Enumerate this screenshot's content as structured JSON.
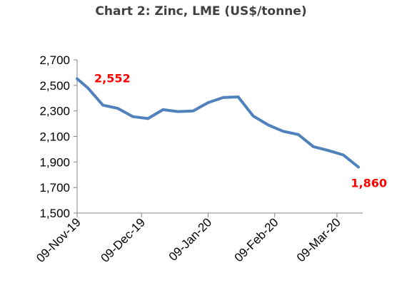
{
  "chart_data": {
    "type": "line",
    "title": "Chart 2: Zinc, LME (US$/tonne)",
    "xlabel": "",
    "ylabel": "",
    "ylim": [
      1500,
      2700
    ],
    "yticks": [
      1500,
      1700,
      1900,
      2100,
      2300,
      2500,
      2700
    ],
    "ytick_labels": [
      "1,500",
      "1,700",
      "1,900",
      "2,100",
      "2,300",
      "2,500",
      "2,700"
    ],
    "x_ticks": [
      "09-Nov-19",
      "09-Dec-19",
      "09-Jan-20",
      "09-Feb-20",
      "09-Mar-20"
    ],
    "x_tick_positions": [
      0,
      30,
      61,
      92,
      121
    ],
    "x_range": [
      0,
      133
    ],
    "grid": false,
    "legend": "none",
    "series": [
      {
        "color": "#4f81bd",
        "x": [
          0,
          5,
          12,
          19,
          26,
          33,
          40,
          47,
          54,
          61,
          68,
          75,
          82,
          89,
          96,
          103,
          110,
          117,
          124,
          131
        ],
        "values": [
          2552,
          2480,
          2345,
          2320,
          2255,
          2240,
          2310,
          2295,
          2300,
          2365,
          2405,
          2410,
          2260,
          2190,
          2140,
          2115,
          2020,
          1990,
          1955,
          1860
        ]
      }
    ],
    "annotations": [
      {
        "text": "2,552",
        "point_index": 0,
        "color": "#ff0000"
      },
      {
        "text": "1,860",
        "point_index": 19,
        "color": "#ff0000"
      }
    ]
  }
}
